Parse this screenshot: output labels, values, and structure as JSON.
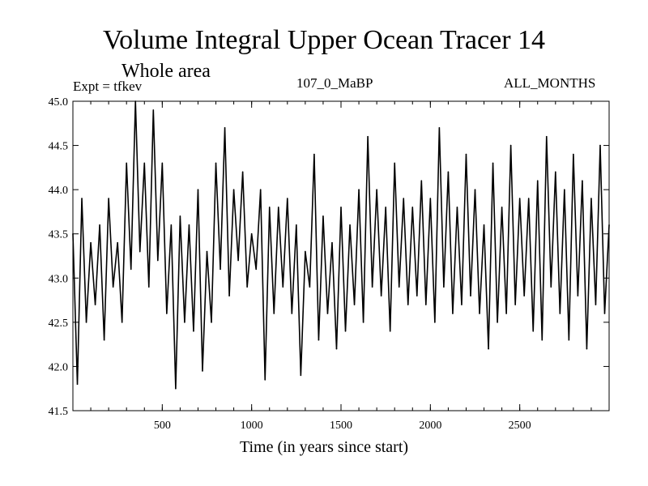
{
  "header": {
    "title": "Volume Integral Upper Ocean Tracer 14",
    "subtitle": "Whole area",
    "experiment": "Expt = tfkev",
    "run_id": "107_0_MaBP",
    "months": "ALL_MONTHS"
  },
  "chart_data": {
    "type": "line",
    "title": "Volume Integral Upper Ocean Tracer 14",
    "subtitle": "Whole area",
    "xlabel": "Time (in years since start)",
    "ylabel": "",
    "xlim": [
      0,
      3000
    ],
    "ylim": [
      41.5,
      45.0
    ],
    "xticks": [
      500,
      1000,
      1500,
      2000,
      2500
    ],
    "yticks": [
      41.5,
      42.0,
      42.5,
      43.0,
      43.5,
      44.0,
      44.5,
      45.0
    ],
    "grid": false,
    "line_color": "#000000",
    "series": [
      {
        "x": [
          0,
          25,
          50,
          75,
          100,
          125,
          150,
          175,
          200,
          225,
          250,
          275,
          300,
          325,
          350,
          375,
          400,
          425,
          450,
          475,
          500,
          525,
          550,
          575,
          600,
          625,
          650,
          675,
          700,
          725,
          750,
          775,
          800,
          825,
          850,
          875,
          900,
          925,
          950,
          975,
          1000,
          1025,
          1050,
          1075,
          1100,
          1125,
          1150,
          1175,
          1200,
          1225,
          1250,
          1275,
          1300,
          1325,
          1350,
          1375,
          1400,
          1425,
          1450,
          1475,
          1500,
          1525,
          1550,
          1575,
          1600,
          1625,
          1650,
          1675,
          1700,
          1725,
          1750,
          1775,
          1800,
          1825,
          1850,
          1875,
          1900,
          1925,
          1950,
          1975,
          2000,
          2025,
          2050,
          2075,
          2100,
          2125,
          2150,
          2175,
          2200,
          2225,
          2250,
          2275,
          2300,
          2325,
          2350,
          2375,
          2400,
          2425,
          2450,
          2475,
          2500,
          2525,
          2550,
          2575,
          2600,
          2625,
          2650,
          2675,
          2700,
          2725,
          2750,
          2775,
          2800,
          2825,
          2850,
          2875,
          2900,
          2925,
          2950,
          2975,
          3000
        ],
        "values": [
          43.5,
          41.8,
          43.9,
          42.5,
          43.4,
          42.7,
          43.6,
          42.3,
          43.9,
          42.9,
          43.4,
          42.5,
          44.3,
          43.1,
          45.0,
          43.3,
          44.3,
          42.9,
          44.9,
          43.2,
          44.3,
          42.6,
          43.6,
          41.75,
          43.7,
          42.5,
          43.6,
          42.4,
          44.0,
          41.95,
          43.3,
          42.5,
          44.3,
          43.1,
          44.7,
          42.8,
          44.0,
          43.2,
          44.2,
          42.9,
          43.5,
          43.1,
          44.0,
          41.85,
          43.8,
          42.6,
          43.8,
          42.9,
          43.9,
          42.6,
          43.6,
          41.9,
          43.3,
          42.9,
          44.4,
          42.3,
          43.7,
          42.6,
          43.4,
          42.2,
          43.8,
          42.4,
          43.6,
          42.7,
          44.0,
          42.5,
          44.6,
          42.9,
          44.0,
          42.8,
          43.8,
          42.4,
          44.3,
          42.9,
          43.9,
          42.7,
          43.8,
          42.8,
          44.1,
          42.7,
          43.9,
          42.5,
          44.7,
          42.9,
          44.2,
          42.6,
          43.8,
          42.7,
          44.4,
          42.8,
          44.0,
          42.6,
          43.6,
          42.2,
          44.3,
          42.5,
          43.8,
          42.6,
          44.5,
          42.7,
          43.9,
          42.8,
          43.9,
          42.4,
          44.1,
          42.3,
          44.6,
          42.9,
          44.2,
          42.6,
          44.0,
          42.3,
          44.4,
          42.8,
          44.1,
          42.2,
          43.9,
          42.7,
          44.5,
          42.6,
          43.6
        ]
      }
    ]
  }
}
